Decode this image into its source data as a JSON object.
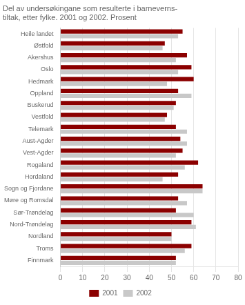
{
  "chart_data": {
    "type": "bar",
    "orientation": "horizontal",
    "title": "Del av undersøkingane som resulterte i barneverns-\ntiltak, etter fylke. 2001 og 2002. Prosent",
    "categories": [
      "Heile landet",
      "Østfold",
      "Akershus",
      "Oslo",
      "Hedmark",
      "Oppland",
      "Buskerud",
      "Vestfold",
      "Telemark",
      "Aust-Agder",
      "Vest-Agder",
      "Rogaland",
      "Hordaland",
      "Sogn og Fjordane",
      "Møre og Romsdal",
      "Sør-Trøndelag",
      "Nord-Trøndelag",
      "Nordland",
      "Troms",
      "Finnmark"
    ],
    "series": [
      {
        "name": "2001",
        "color": "#8B0000",
        "values": [
          55,
          47,
          57,
          59,
          60,
          53,
          52,
          48,
          52,
          54,
          55,
          62,
          53,
          64,
          53,
          52,
          59,
          50,
          59,
          52
        ]
      },
      {
        "name": "2002",
        "color": "#C8C8C8",
        "values": [
          53,
          46,
          52,
          53,
          48,
          59,
          51,
          47,
          57,
          57,
          52,
          56,
          46,
          64,
          57,
          60,
          61,
          50,
          56,
          52
        ]
      }
    ],
    "xlim": [
      0,
      80
    ],
    "xticks": [
      0,
      10,
      20,
      30,
      40,
      50,
      60,
      70,
      80
    ],
    "grid": true,
    "legend": "bottom"
  }
}
